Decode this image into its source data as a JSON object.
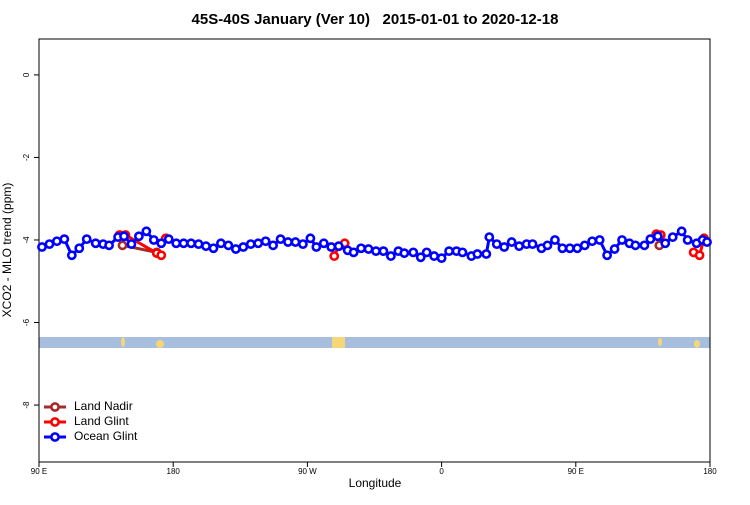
{
  "chart_data": {
    "type": "line",
    "title": "45S-40S January (Ver 10)   2015-01-01 to 2020-12-18",
    "xlabel": "Longitude",
    "ylabel": "XCO2 - MLO trend (ppm)",
    "xlim": [
      90,
      540
    ],
    "xticks": [
      {
        "value": 90,
        "label": "90 E"
      },
      180,
      {
        "value": 270,
        "label": "90 W"
      },
      {
        "value": 360,
        "label": "0"
      },
      {
        "value": 450,
        "label": "90 E"
      },
      {
        "value": 540,
        "label": "180"
      }
    ],
    "ylim": [
      -9.38,
      0.87
    ],
    "yticks": [
      0,
      -2,
      -4,
      -6,
      -8
    ],
    "legend": "bottom-left",
    "series": [
      {
        "name": "Land Nadir",
        "color": "#a52a2a",
        "x": [
          146,
          169,
          null,
          506
        ],
        "values": [
          -4.13,
          -4.3,
          null,
          -4.13
        ]
      },
      {
        "name": "Land Glint",
        "color": "#ff0000",
        "x": [
          144,
          148,
          169,
          172,
          null,
          175,
          null,
          288,
          291,
          295,
          null,
          504,
          507,
          null,
          529,
          533,
          536
        ],
        "values": [
          -3.88,
          -3.88,
          -4.32,
          -4.37,
          null,
          -3.96,
          null,
          -4.39,
          -4.15,
          -4.08,
          null,
          -3.86,
          -3.88,
          null,
          -4.3,
          -4.37,
          -3.96
        ]
      },
      {
        "name": "Ocean Glint",
        "color": "#0000ff",
        "x": [
          92,
          97,
          102,
          107,
          112,
          117,
          122,
          128,
          133,
          137,
          143,
          147,
          152,
          157,
          162,
          167,
          172,
          177,
          182,
          187,
          192,
          197,
          202,
          207,
          212,
          217,
          222,
          227,
          232,
          237,
          242,
          247,
          252,
          257,
          262,
          267,
          272,
          276,
          281,
          286,
          291,
          297,
          301,
          306,
          311,
          316,
          321,
          326,
          331,
          335,
          341,
          346,
          350,
          355,
          360,
          365,
          370,
          374,
          380,
          384,
          390,
          392,
          397,
          402,
          407,
          412,
          417,
          421,
          427,
          431,
          436,
          441,
          446,
          451,
          456,
          461,
          466,
          471,
          476,
          481,
          486,
          490,
          496,
          500,
          505,
          510,
          515,
          521,
          525,
          531,
          535,
          538
        ],
        "values": [
          -4.17,
          -4.1,
          -4.03,
          -3.98,
          -4.37,
          -4.2,
          -3.98,
          -4.08,
          -4.1,
          -4.13,
          -3.93,
          -3.91,
          -4.1,
          -3.91,
          -3.79,
          -4.0,
          -4.08,
          -3.98,
          -4.08,
          -4.08,
          -4.08,
          -4.1,
          -4.15,
          -4.2,
          -4.08,
          -4.13,
          -4.22,
          -4.17,
          -4.1,
          -4.08,
          -4.03,
          -4.13,
          -3.98,
          -4.05,
          -4.05,
          -4.1,
          -3.96,
          -4.17,
          -4.08,
          -4.17,
          -4.15,
          -4.25,
          -4.3,
          -4.2,
          -4.22,
          -4.27,
          -4.27,
          -4.39,
          -4.27,
          -4.32,
          -4.3,
          -4.42,
          -4.3,
          -4.39,
          -4.44,
          -4.27,
          -4.27,
          -4.3,
          -4.39,
          -4.34,
          -4.34,
          -3.93,
          -4.1,
          -4.17,
          -4.05,
          -4.15,
          -4.1,
          -4.1,
          -4.2,
          -4.13,
          -4.0,
          -4.2,
          -4.2,
          -4.2,
          -4.13,
          -4.03,
          -4.0,
          -4.37,
          -4.22,
          -4.0,
          -4.08,
          -4.13,
          -4.13,
          -3.98,
          -3.91,
          -4.08,
          -3.93,
          -3.79,
          -4.0,
          -4.08,
          -4.0,
          -4.05
        ]
      }
    ]
  }
}
